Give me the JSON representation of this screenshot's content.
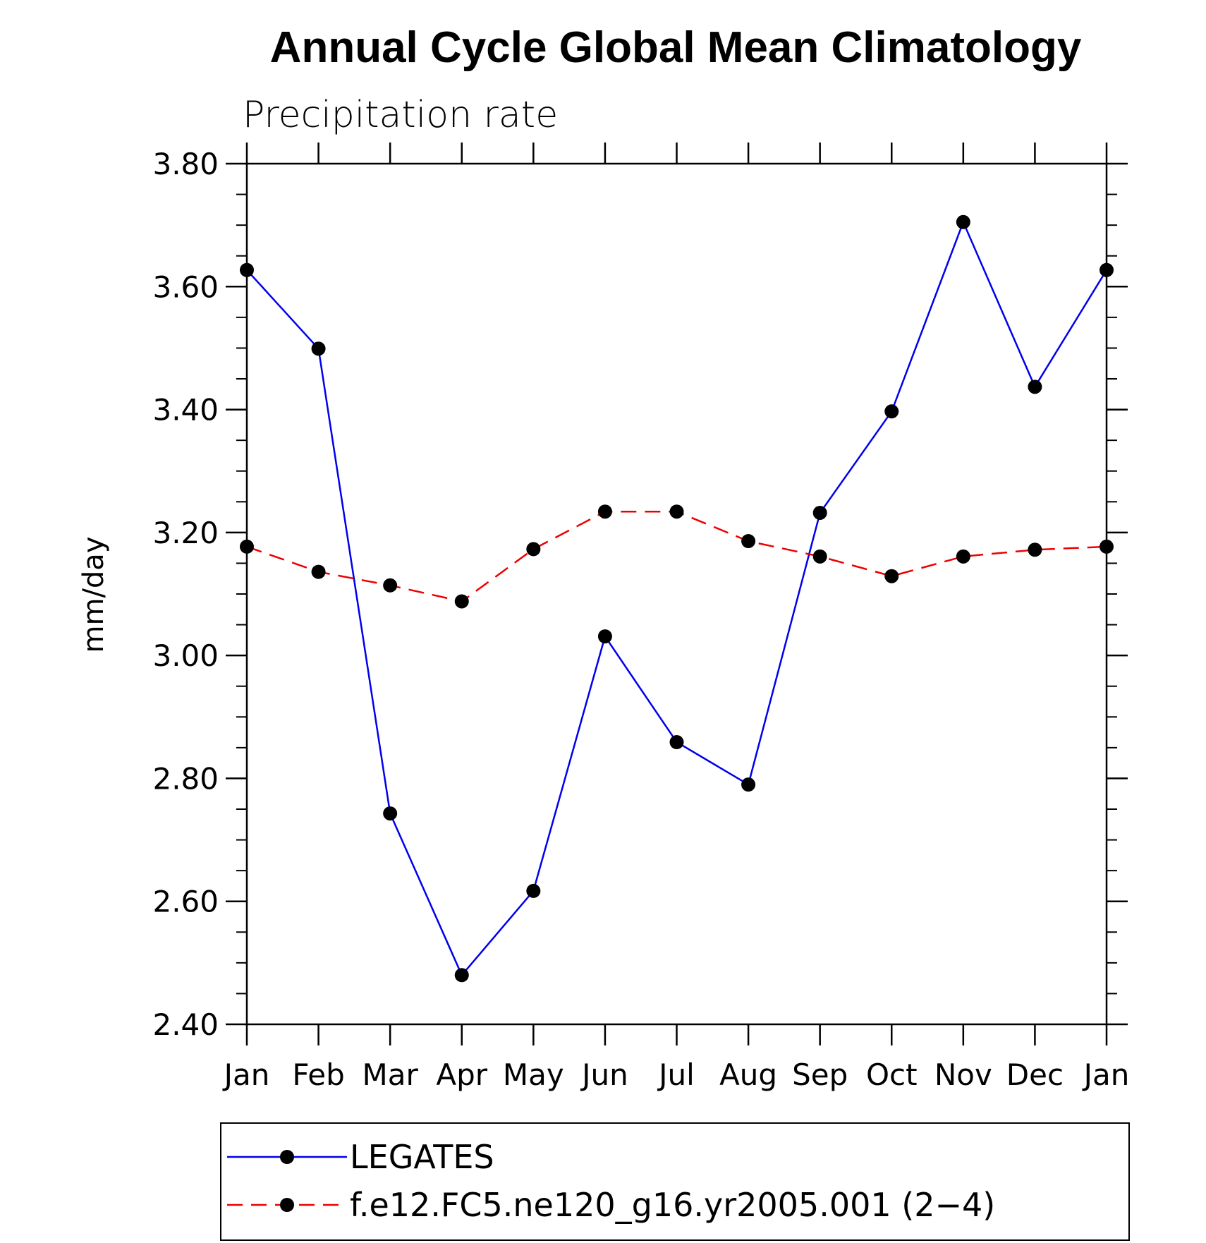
{
  "chart_data": {
    "type": "line",
    "title": "Annual Cycle Global Mean Climatology",
    "subtitle": "Precipitation rate",
    "xlabel": "",
    "ylabel": "mm/day",
    "categories": [
      "Jan",
      "Feb",
      "Mar",
      "Apr",
      "May",
      "Jun",
      "Jul",
      "Aug",
      "Sep",
      "Oct",
      "Nov",
      "Dec",
      "Jan"
    ],
    "ylim": [
      2.4,
      3.8
    ],
    "yticks": [
      "2.40",
      "2.60",
      "2.80",
      "3.00",
      "3.20",
      "3.40",
      "3.60",
      "3.80"
    ],
    "ytick_values": [
      2.4,
      2.6,
      2.8,
      3.0,
      3.2,
      3.4,
      3.6,
      3.8
    ],
    "minor_tick_step": 0.05,
    "grid": false,
    "legend_position": "bottom",
    "series": [
      {
        "name": "LEGATES",
        "color": "#0000ee",
        "dash": "solid",
        "marker": "filled-circle",
        "values": [
          3.627,
          3.499,
          2.743,
          2.48,
          2.617,
          3.031,
          2.859,
          2.79,
          3.232,
          3.397,
          3.705,
          3.437,
          3.627
        ]
      },
      {
        "name": "f.e12.FC5.ne120_g16.yr2005.001 (2−4)",
        "color": "#ee0000",
        "dash": "dashed",
        "marker": "filled-circle",
        "values": [
          3.177,
          3.136,
          3.114,
          3.088,
          3.173,
          3.234,
          3.234,
          3.186,
          3.161,
          3.129,
          3.161,
          3.172,
          3.177
        ]
      }
    ]
  }
}
